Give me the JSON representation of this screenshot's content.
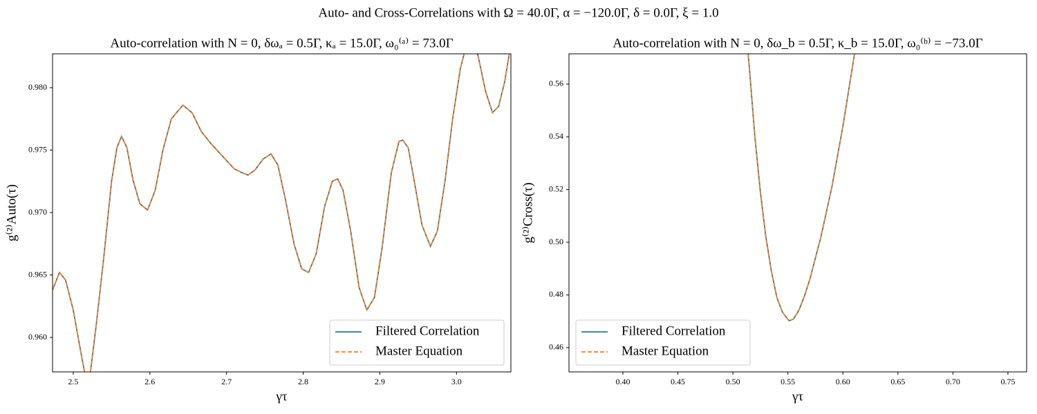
{
  "suptitle": "Auto- and Cross-Correlations with Ω = 40.0Γ, α = −120.0Γ, δ = 0.0Γ, ξ = 1.0",
  "chart_data": [
    {
      "type": "line",
      "title": "Auto-correlation with N = 0, δωₐ = 0.5Γ, κₐ = 15.0Γ, ω₀⁽ᵃ⁾ = 73.0Γ",
      "xlabel": "γτ",
      "ylabel": "g⁽²⁾Auto(τ)",
      "x": [
        2.473,
        2.482,
        2.49,
        2.5,
        2.51,
        2.517,
        2.522,
        2.53,
        2.54,
        2.55,
        2.557,
        2.563,
        2.57,
        2.578,
        2.587,
        2.597,
        2.607,
        2.617,
        2.628,
        2.643,
        2.655,
        2.667,
        2.68,
        2.695,
        2.71,
        2.72,
        2.728,
        2.737,
        2.748,
        2.758,
        2.767,
        2.777,
        2.788,
        2.798,
        2.807,
        2.817,
        2.828,
        2.838,
        2.845,
        2.852,
        2.862,
        2.873,
        2.883,
        2.893,
        2.903,
        2.915,
        2.925,
        2.93,
        2.937,
        2.945,
        2.955,
        2.966,
        2.975,
        2.985,
        2.995,
        3.005,
        3.012,
        3.02,
        3.028,
        3.038,
        3.047,
        3.055,
        3.063,
        3.071
      ],
      "series": [
        {
          "name": "Filtered Correlation",
          "color": "#1f77b4",
          "dash": false,
          "values": [
            0.9638,
            0.9652,
            0.9646,
            0.9622,
            0.9588,
            0.9565,
            0.957,
            0.961,
            0.9665,
            0.9725,
            0.9752,
            0.9761,
            0.9752,
            0.9726,
            0.9707,
            0.9702,
            0.9718,
            0.975,
            0.9775,
            0.9786,
            0.978,
            0.9765,
            0.9755,
            0.9745,
            0.9735,
            0.9732,
            0.973,
            0.9734,
            0.9743,
            0.9747,
            0.9738,
            0.971,
            0.9675,
            0.9655,
            0.9652,
            0.9667,
            0.9705,
            0.9725,
            0.9727,
            0.9718,
            0.9685,
            0.964,
            0.9622,
            0.9632,
            0.9672,
            0.9732,
            0.9757,
            0.9758,
            0.9752,
            0.9725,
            0.969,
            0.9673,
            0.9685,
            0.9725,
            0.9775,
            0.9815,
            0.9832,
            0.9836,
            0.9826,
            0.9797,
            0.978,
            0.9785,
            0.9805,
            0.9835
          ]
        },
        {
          "name": "Master Equation",
          "color": "#ff7f0e",
          "dash": true,
          "values": [
            0.9638,
            0.9652,
            0.9646,
            0.9622,
            0.9588,
            0.9565,
            0.957,
            0.961,
            0.9665,
            0.9725,
            0.9752,
            0.9761,
            0.9752,
            0.9726,
            0.9707,
            0.9702,
            0.9718,
            0.975,
            0.9775,
            0.9786,
            0.978,
            0.9765,
            0.9755,
            0.9745,
            0.9735,
            0.9732,
            0.973,
            0.9734,
            0.9743,
            0.9747,
            0.9738,
            0.971,
            0.9675,
            0.9655,
            0.9652,
            0.9667,
            0.9705,
            0.9725,
            0.9727,
            0.9718,
            0.9685,
            0.964,
            0.9622,
            0.9632,
            0.9672,
            0.9732,
            0.9757,
            0.9758,
            0.9752,
            0.9725,
            0.969,
            0.9673,
            0.9685,
            0.9725,
            0.9775,
            0.9815,
            0.9832,
            0.9836,
            0.9826,
            0.9797,
            0.978,
            0.9785,
            0.9805,
            0.9835
          ]
        }
      ],
      "xlim": [
        2.473,
        3.071
      ],
      "ylim": [
        0.95724,
        0.98271
      ],
      "xticks": [
        2.5,
        2.6,
        2.7,
        2.8,
        2.9,
        {
          "value": 3.0,
          "label": "3.0"
        }
      ],
      "yticks": [
        {
          "value": 0.96,
          "label": "0.960"
        },
        0.965,
        {
          "value": 0.97,
          "label": "0.970"
        },
        0.975,
        {
          "value": 0.98,
          "label": "0.980"
        }
      ],
      "legend_loc": "lower right",
      "grid": false
    },
    {
      "type": "line",
      "title": "Auto-correlation with N = 0, δω_b = 0.5Γ, κ_b = 15.0Γ, ω₀⁽ᵇ⁾ = −73.0Γ",
      "xlabel": "γτ",
      "ylabel": "g⁽²⁾Cross(τ)",
      "x": [
        0.51,
        0.515,
        0.52,
        0.525,
        0.53,
        0.535,
        0.54,
        0.545,
        0.551,
        0.555,
        0.56,
        0.565,
        0.57,
        0.58,
        0.59,
        0.6,
        0.61,
        0.615
      ],
      "series": [
        {
          "name": "Filtered Correlation",
          "color": "#1f77b4",
          "dash": false,
          "values": [
            0.59,
            0.566,
            0.54,
            0.519,
            0.502,
            0.489,
            0.479,
            0.4735,
            0.4702,
            0.4708,
            0.4742,
            0.4795,
            0.486,
            0.502,
            0.521,
            0.544,
            0.57,
            0.585
          ]
        },
        {
          "name": "Master Equation",
          "color": "#ff7f0e",
          "dash": true,
          "values": [
            0.59,
            0.566,
            0.54,
            0.519,
            0.502,
            0.489,
            0.479,
            0.4735,
            0.4702,
            0.4708,
            0.4742,
            0.4795,
            0.486,
            0.502,
            0.521,
            0.544,
            0.57,
            0.585
          ]
        }
      ],
      "xlim": [
        0.351,
        0.767
      ],
      "ylim": [
        0.4508,
        0.5715
      ],
      "xticks": [
        {
          "value": 0.4,
          "label": "0.40"
        },
        0.45,
        {
          "value": 0.5,
          "label": "0.50"
        },
        0.55,
        {
          "value": 0.6,
          "label": "0.60"
        },
        0.65,
        {
          "value": 0.7,
          "label": "0.70"
        },
        0.75
      ],
      "yticks": [
        0.46,
        0.48,
        {
          "value": 0.5,
          "label": "0.50"
        },
        0.52,
        0.54,
        0.56
      ],
      "legend_loc": "lower left",
      "grid": false
    }
  ]
}
